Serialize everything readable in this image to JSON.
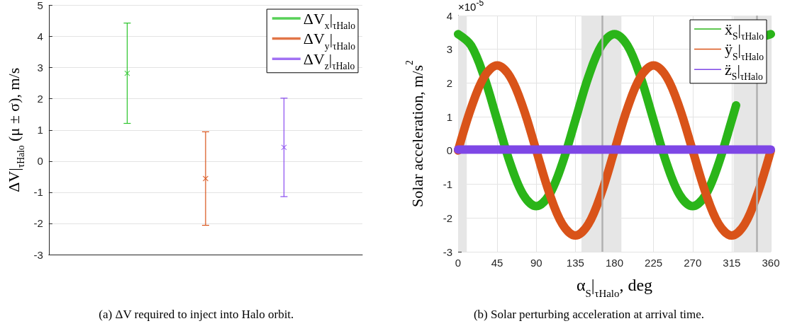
{
  "chart_data": [
    {
      "type": "scatter",
      "ylabel": "ΔV|$_{τHalo}$ (μ ± σ), m/s",
      "categories": [
        null,
        null,
        null,
        null,
        null
      ],
      "ylim": [
        -3,
        5
      ],
      "yticks": [
        -3,
        -2,
        -1,
        0,
        1,
        2,
        3,
        4,
        5
      ],
      "grid": "y",
      "legend": "top right",
      "marker": "cross",
      "tick_labels": "y",
      "series": [
        {
          "name": "ΔV$_{x}$|$_{τHalo}$",
          "color": "#2dc52d",
          "values": [
            null,
            2.82,
            null,
            null,
            null
          ],
          "errors": [
            null,
            [
              1.21,
              4.43
            ],
            null,
            null,
            null
          ]
        },
        {
          "name": "ΔV$_{y}$|$_{τHalo}$",
          "color": "#d95319",
          "values": [
            null,
            null,
            -0.56,
            null,
            null
          ],
          "errors": [
            null,
            null,
            [
              -2.06,
              0.94
            ],
            null,
            null
          ]
        },
        {
          "name": "ΔV$_{z}$|$_{τHalo}$",
          "color": "#8a4df0",
          "values": [
            null,
            null,
            null,
            0.44,
            null
          ],
          "errors": [
            null,
            null,
            null,
            [
              -1.14,
              2.02
            ],
            null
          ]
        }
      ],
      "annotations": [
        "(a) ΔV required to inject into Halo orbit."
      ]
    },
    {
      "type": "line",
      "xlabel": "α$_{S}$|$_{τHalo}$, deg",
      "ylabel": "Solar acceleration, m/s$^{2}$",
      "xlim": [
        0,
        360
      ],
      "xticks": [
        0,
        45,
        90,
        135,
        180,
        225,
        270,
        315,
        360
      ],
      "ylim": [
        -3,
        4
      ],
      "yticks": [
        -3,
        -2,
        -1,
        0,
        1,
        2,
        3,
        4
      ],
      "grid": true,
      "legend": "top right",
      "marker": "none",
      "x": [
        0,
        15,
        30,
        45,
        60,
        75,
        90,
        105,
        120,
        135,
        150,
        165,
        180,
        195,
        210,
        225,
        240,
        255,
        270,
        285,
        300,
        315,
        330,
        345,
        360
      ],
      "series": [
        {
          "name": "ẍ$_{S}$|$_{τHalo}$",
          "color": "#2ab519",
          "x": [
            0,
            15,
            30,
            45,
            60,
            75,
            90,
            105,
            120,
            135,
            150,
            165,
            180,
            195,
            210,
            225,
            240,
            255,
            270,
            285,
            300,
            315,
            320,
            330,
            345,
            355,
            360
          ],
          "values": [
            3.45,
            3.11,
            2.18,
            0.9,
            -0.38,
            -1.31,
            -1.65,
            -1.31,
            -0.38,
            0.9,
            2.18,
            3.11,
            3.45,
            3.11,
            2.18,
            0.9,
            -0.38,
            -1.31,
            -1.65,
            -1.31,
            -0.38,
            0.9,
            1.34,
            null,
            null,
            3.41,
            3.45
          ]
        },
        {
          "name": "ÿ$_{S}$|$_{τHalo}$",
          "color": "#d95319",
          "values": [
            0,
            1.26,
            2.18,
            2.52,
            2.18,
            1.26,
            0,
            -1.26,
            -2.18,
            -2.52,
            -2.18,
            -1.26,
            0,
            1.26,
            2.18,
            2.52,
            2.18,
            1.26,
            0,
            -1.26,
            -2.18,
            -2.52,
            -2.18,
            -1.26,
            0
          ]
        },
        {
          "name": "z̈$_{S}$|$_{τHalo}$",
          "color": "#7e47e6",
          "values": [
            0.03,
            0.03,
            0.03,
            0.03,
            0.03,
            0.03,
            0.03,
            0.03,
            0.03,
            0.03,
            0.03,
            0.03,
            0.03,
            0.03,
            0.03,
            0.03,
            0.03,
            0.03,
            0.03,
            0.03,
            0.03,
            0.03,
            0.03,
            0.03,
            0.03
          ]
        }
      ],
      "bands": [
        {
          "axis": "x",
          "from": 0,
          "to": 10,
          "color": "#e6e6e6"
        },
        {
          "axis": "x",
          "from": 142,
          "to": 188,
          "color": "#e6e6e6"
        },
        {
          "axis": "x",
          "from": 317,
          "to": 360,
          "color": "#e6e6e6"
        }
      ],
      "ref_lines": [
        {
          "axis": "x",
          "value": 166,
          "color": "#b0b0b0"
        },
        {
          "axis": "x",
          "value": 344,
          "color": "#b0b0b0"
        }
      ],
      "annotations": [
        "×10$^{-5}$",
        "(b) Solar perturbing acceleration at arrival time."
      ]
    }
  ]
}
